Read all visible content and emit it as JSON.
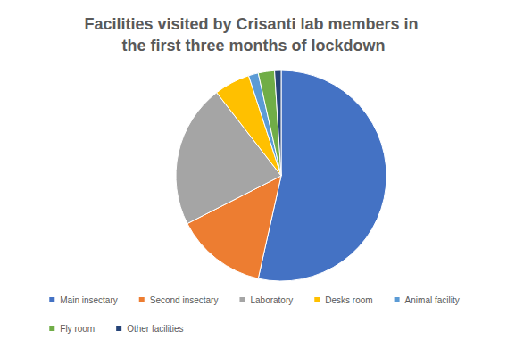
{
  "chart_data": {
    "type": "pie",
    "title": "Facilities visited by Crisanti lab members in the first three months of lockdown",
    "categories": [
      "Main insectary",
      "Second insectary",
      "Laboratory",
      "Desks room",
      "Animal facility",
      "Fly room",
      "Other facilities"
    ],
    "values": [
      53.5,
      14,
      22,
      5.5,
      1.5,
      2.5,
      1
    ],
    "colors": [
      "#4472c4",
      "#ed7d31",
      "#a5a5a5",
      "#ffc000",
      "#5b9bd5",
      "#70ad47",
      "#264478"
    ],
    "legend": "bottom"
  }
}
